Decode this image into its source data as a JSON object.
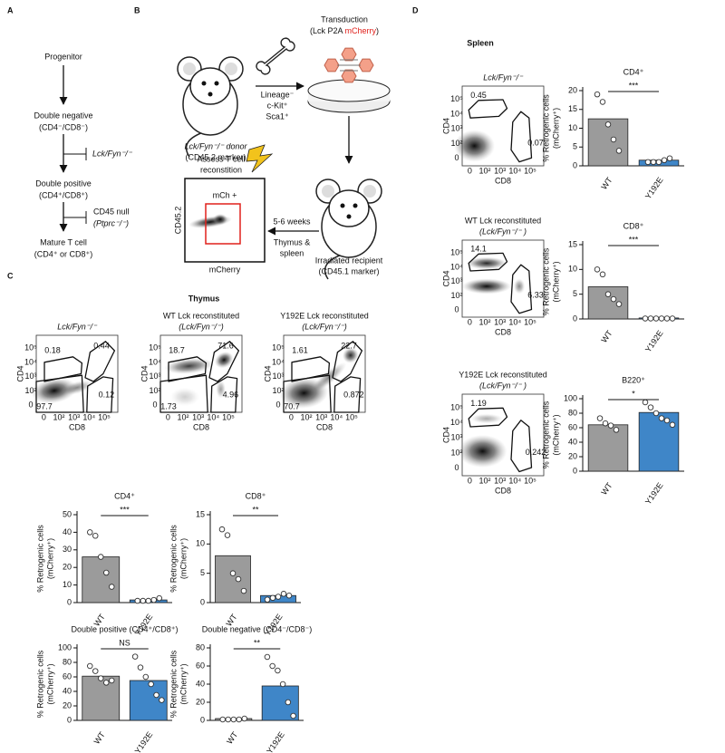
{
  "panel_labels": [
    "A",
    "B",
    "C",
    "D"
  ],
  "panel_a": {
    "steps": [
      {
        "name": "Progenitor"
      },
      {
        "name": "Double negative",
        "detail": "(CD4⁻/CD8⁻)"
      },
      {
        "name": "Double positive",
        "detail": "(CD4⁺/CD8⁺)"
      },
      {
        "name": "Mature T cell",
        "detail": "(CD4⁺ or CD8⁺)"
      }
    ],
    "blocks": [
      {
        "label": "Lck/Fyn⁻/⁻"
      },
      {
        "label": "CD45 null",
        "detail": "(Ptprc⁻/⁻)"
      }
    ]
  },
  "panel_b": {
    "donor": "Lck/Fyn⁻/⁻ donor",
    "donor_marker": "(CD45.2 marker)",
    "selection": [
      "Lineage⁻",
      "c-Kit⁺",
      "Sca1⁺"
    ],
    "transduction": "Transduction",
    "construct_open": "(Lck P2A ",
    "construct_reporter": "mCherry",
    "construct_close": ")",
    "recipient": "Irradiated recipient",
    "recipient_marker": "(CD45.1 marker)",
    "time": "5-6 weeks",
    "tissues": [
      "Thymus &",
      "spleen"
    ],
    "assess": [
      "Assess T cell",
      "reconstition"
    ],
    "gate": "mCh +",
    "y_axis": "CD45.2",
    "x_axis": "mCherry"
  },
  "flow_axis": {
    "ticks": [
      "0",
      "10²",
      "10³",
      "10⁴",
      "10⁵"
    ],
    "x": "CD8",
    "y": "CD4"
  },
  "thymus": {
    "title": "Thymus",
    "plots": [
      {
        "title": "Lck/Fyn⁻/⁻",
        "gates": [
          0.18,
          0.44,
          0.12,
          97.7
        ]
      },
      {
        "title": "WT Lck reconstituted",
        "subtitle": "(Lck/Fyn⁻/⁻)",
        "gates": [
          18.7,
          71.6,
          4.96,
          1.73
        ]
      },
      {
        "title": "Y192E Lck reconstituted",
        "subtitle": "(Lck/Fyn⁻/⁻)",
        "gates": [
          1.61,
          22.7,
          0.872,
          70.7
        ]
      }
    ]
  },
  "spleen": {
    "title": "Spleen",
    "plots": [
      {
        "title": "Lck/Fyn⁻/⁻",
        "gates": [
          0.45,
          0.07
        ]
      },
      {
        "title": "WT Lck reconstituted",
        "subtitle": "(Lck/Fyn⁻/⁻ )",
        "gates": [
          14.1,
          6.33
        ]
      },
      {
        "title": "Y192E Lck reconstituted",
        "subtitle": "(Lck/Fyn⁻/⁻ )",
        "gates": [
          1.19,
          0.242
        ]
      }
    ]
  },
  "chart_data": [
    {
      "type": "bar",
      "title": "CD4⁺",
      "ylabel": [
        "% Retrogenic cells",
        "(mCherry⁺)"
      ],
      "categories": [
        "WT",
        "Y192E"
      ],
      "colors": [
        "#9b9b9b",
        "#3f86c8"
      ],
      "values": [
        26,
        1.5
      ],
      "points": [
        [
          40,
          38,
          26,
          17,
          9
        ],
        [
          1,
          1,
          1,
          1.5,
          2.5
        ]
      ],
      "significance": "***",
      "ylim": [
        0,
        50
      ],
      "yticks": [
        0,
        10,
        20,
        30,
        40,
        50
      ]
    },
    {
      "type": "bar",
      "title": "CD8⁺",
      "ylabel": [
        "% Retrogenic cells",
        "(mCherry⁺)"
      ],
      "categories": [
        "WT",
        "Y192E"
      ],
      "colors": [
        "#9b9b9b",
        "#3f86c8"
      ],
      "values": [
        8,
        1.2
      ],
      "points": [
        [
          12.5,
          11.5,
          5,
          4,
          2
        ],
        [
          0.5,
          0.8,
          1,
          1.5,
          1.2
        ]
      ],
      "significance": "**",
      "ylim": [
        0,
        15
      ],
      "yticks": [
        0,
        5,
        10,
        15
      ]
    },
    {
      "type": "bar",
      "title": "Double positive (CD4⁺/CD8⁺)",
      "ylabel": [
        "% Retrogenic cells",
        "(mCherry⁺)"
      ],
      "categories": [
        "WT",
        "Y192E"
      ],
      "colors": [
        "#9b9b9b",
        "#3f86c8"
      ],
      "values": [
        61,
        55
      ],
      "points": [
        [
          75,
          68,
          58,
          52,
          55
        ],
        [
          88,
          73,
          60,
          50,
          35,
          28
        ]
      ],
      "significance": "NS",
      "ylim": [
        0,
        100
      ],
      "yticks": [
        0,
        20,
        40,
        60,
        80,
        100
      ]
    },
    {
      "type": "bar",
      "title": "Double negative (CD4⁻/CD8⁻)",
      "ylabel": [
        "% Retrogenic cells",
        "(mCherry⁺)"
      ],
      "categories": [
        "WT",
        "Y192E"
      ],
      "colors": [
        "#9b9b9b",
        "#3f86c8"
      ],
      "values": [
        2,
        38
      ],
      "points": [
        [
          1,
          1,
          1,
          1,
          2
        ],
        [
          70,
          60,
          55,
          40,
          20,
          5
        ]
      ],
      "significance": "**",
      "ylim": [
        0,
        80
      ],
      "yticks": [
        0,
        20,
        40,
        60,
        80
      ]
    },
    {
      "type": "bar",
      "title": "CD4⁺",
      "ylabel": [
        "% Retrogenic cells",
        "(mCherry⁺)"
      ],
      "categories": [
        "WT",
        "Y192E"
      ],
      "colors": [
        "#9b9b9b",
        "#3f86c8"
      ],
      "values": [
        12.5,
        1.5
      ],
      "points": [
        [
          19,
          17,
          11,
          7,
          4
        ],
        [
          1,
          1,
          1,
          1.5,
          2
        ]
      ],
      "significance": "***",
      "ylim": [
        0,
        20
      ],
      "yticks": [
        0,
        5,
        10,
        15,
        20
      ]
    },
    {
      "type": "bar",
      "title": "CD8⁺",
      "ylabel": [
        "% Retrogenic cells",
        "(mCherry⁺)"
      ],
      "categories": [
        "WT",
        "Y192E"
      ],
      "colors": [
        "#9b9b9b",
        "#3f86c8"
      ],
      "values": [
        6.5,
        0.2
      ],
      "points": [
        [
          10,
          9,
          5,
          4,
          3
        ],
        [
          0.1,
          0.1,
          0.1,
          0.1,
          0.1,
          0.1
        ]
      ],
      "significance": "***",
      "ylim": [
        0,
        15
      ],
      "yticks": [
        0,
        5,
        10,
        15
      ]
    },
    {
      "type": "bar",
      "title": "B220⁺",
      "ylabel": [
        "% Retrogenic cells",
        "(mCherry⁺)"
      ],
      "categories": [
        "WT",
        "Y192E"
      ],
      "colors": [
        "#9b9b9b",
        "#3f86c8"
      ],
      "values": [
        64,
        81
      ],
      "points": [
        [
          73,
          66,
          63,
          57
        ],
        [
          95,
          88,
          80,
          73,
          70,
          64
        ]
      ],
      "significance": "*",
      "ylim": [
        0,
        100
      ],
      "yticks": [
        0,
        20,
        40,
        60,
        80,
        100
      ]
    }
  ]
}
